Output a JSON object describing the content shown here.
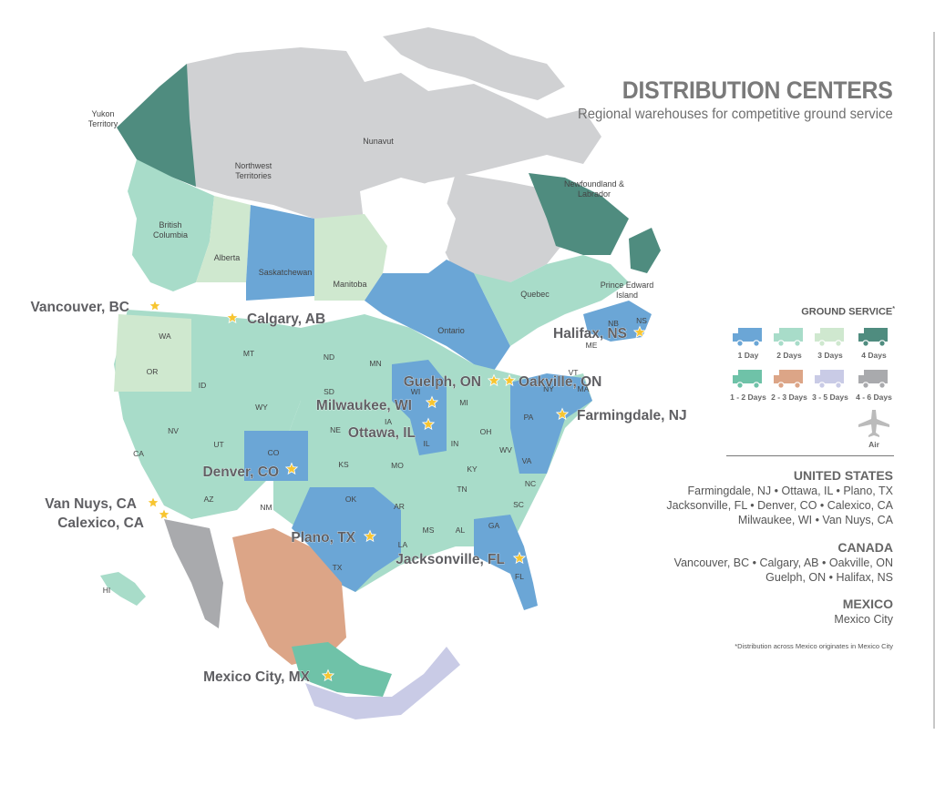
{
  "title": "DISTRIBUTION CENTERS",
  "subtitle": "Regional warehouses for competitive ground service",
  "legend": {
    "title": "GROUND SERVICE",
    "title_mark": "*",
    "items": [
      {
        "label": "1 Day",
        "color": "#6ba6d6",
        "icon": "truck-icon"
      },
      {
        "label": "2 Days",
        "color": "#a8dcc9",
        "icon": "truck-icon"
      },
      {
        "label": "3 Days",
        "color": "#cfe8cf",
        "icon": "truck-icon"
      },
      {
        "label": "4 Days",
        "color": "#4f8c7f",
        "icon": "truck-icon"
      },
      {
        "label": "1 - 2 Days",
        "color": "#6fc2a8",
        "icon": "truck-icon"
      },
      {
        "label": "2 - 3 Days",
        "color": "#dca587",
        "icon": "truck-icon"
      },
      {
        "label": "3 - 5 Days",
        "color": "#c9cbe6",
        "icon": "truck-icon"
      },
      {
        "label": "4 - 6 Days",
        "color": "#a9aaad",
        "icon": "truck-icon"
      },
      {
        "label": "Air",
        "color": "#bbbbbb",
        "icon": "airplane-icon"
      }
    ]
  },
  "regions": [
    {
      "name": "UNITED STATES",
      "lines": [
        "Farmingdale, NJ • Ottawa, IL • Plano, TX",
        "Jacksonville, FL • Denver, CO •  Calexico, CA",
        "Milwaukee, WI •  Van Nuys, CA"
      ]
    },
    {
      "name": "CANADA",
      "lines": [
        "Vancouver, BC • Calgary, AB • Oakville, ON",
        "Guelph, ON • Halifax, NS"
      ]
    },
    {
      "name": "MEXICO",
      "lines": [
        "Mexico City"
      ]
    }
  ],
  "footnote": "*Distribution across Mexico originates in Mexico City",
  "map": {
    "star_color": "#f7c531",
    "centers": [
      {
        "label": "Vancouver, BC",
        "lat": 49.28,
        "lon": -123.12
      },
      {
        "label": "Calgary, AB",
        "lat": 51.05,
        "lon": -114.07
      },
      {
        "label": "Halifax, NS",
        "lat": 44.65,
        "lon": -63.57
      },
      {
        "label": "Guelph, ON",
        "lat": 43.55,
        "lon": -80.25
      },
      {
        "label": "Oakville, ON",
        "lat": 43.45,
        "lon": -79.69
      },
      {
        "label": "Milwaukee, WI",
        "lat": 43.04,
        "lon": -87.91
      },
      {
        "label": "Ottawa, IL",
        "lat": 41.35,
        "lon": -88.84
      },
      {
        "label": "Farmingdale, NJ",
        "lat": 40.2,
        "lon": -74.17
      },
      {
        "label": "Denver, CO",
        "lat": 39.74,
        "lon": -104.99
      },
      {
        "label": "Van Nuys, CA",
        "lat": 34.19,
        "lon": -118.45
      },
      {
        "label": "Calexico, CA",
        "lat": 32.68,
        "lon": -115.5
      },
      {
        "label": "Plano, TX",
        "lat": 33.02,
        "lon": -96.7
      },
      {
        "label": "Jacksonville, FL",
        "lat": 30.33,
        "lon": -81.66
      },
      {
        "label": "Mexico City, MX",
        "lat": 19.43,
        "lon": -99.13
      }
    ],
    "region_labels": [
      "Yukon Territory",
      "Northwest Territories",
      "Nunavut",
      "Newfoundland & Labrador",
      "British Columbia",
      "Alberta",
      "Saskatchewan",
      "Manitoba",
      "Ontario",
      "Quebec",
      "Prince Edward Island",
      "NB",
      "NS",
      "WA",
      "OR",
      "ID",
      "MT",
      "ND",
      "SD",
      "WY",
      "CO",
      "NE",
      "KS",
      "MN",
      "IA",
      "WI",
      "MI",
      "IL",
      "IN",
      "OH",
      "PA",
      "NY",
      "ME",
      "VT",
      "MA",
      "WV",
      "VA",
      "KY",
      "NC",
      "TN",
      "SC",
      "GA",
      "AL",
      "MS",
      "FL",
      "LA",
      "AR",
      "OK",
      "TX",
      "NM",
      "AZ",
      "UT",
      "NV",
      "CA",
      "MO",
      "HI"
    ]
  }
}
